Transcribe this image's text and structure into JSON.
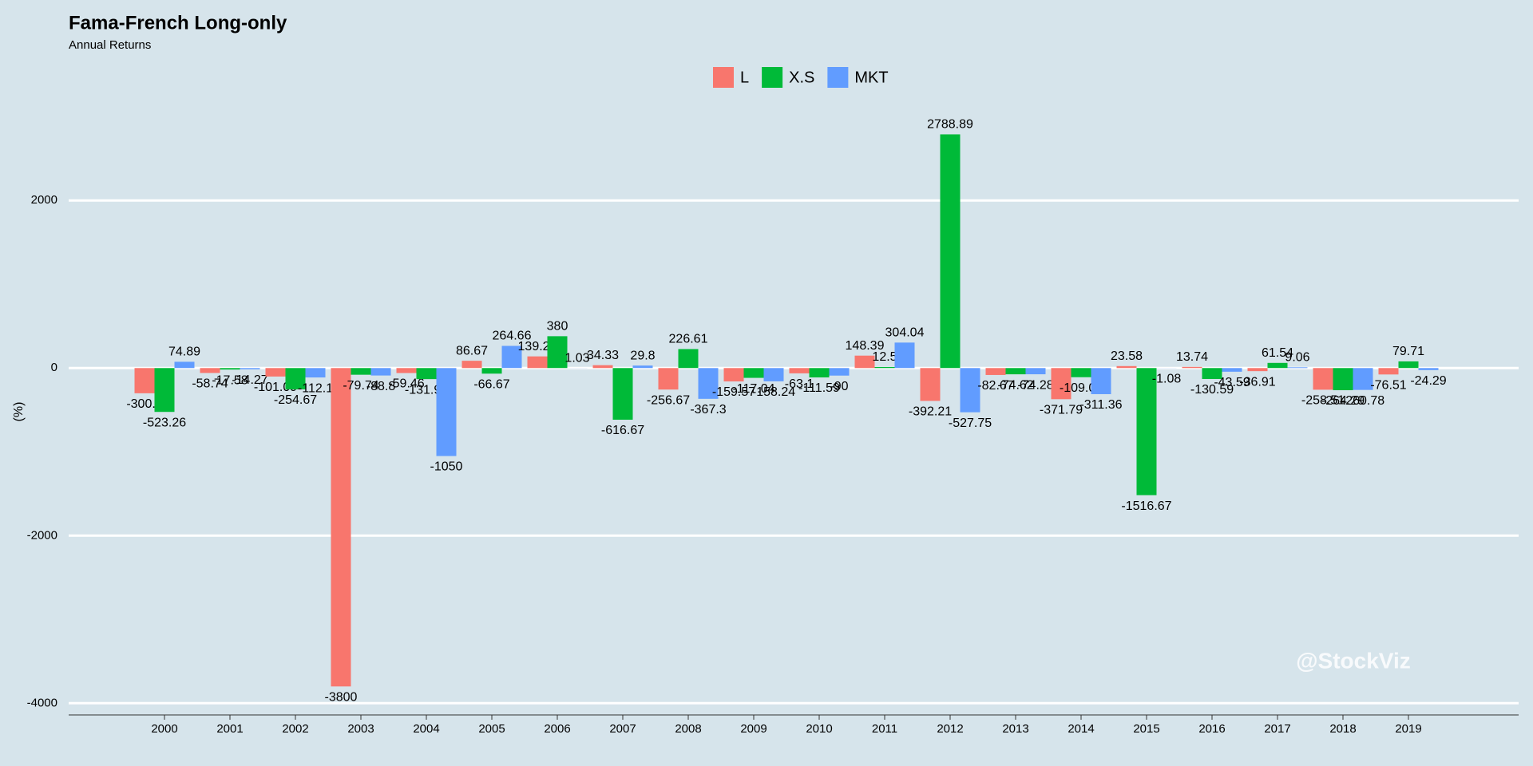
{
  "chart_data": {
    "type": "bar",
    "title": "Fama-French Long-only",
    "subtitle": "Annual Returns",
    "y_label": "(%)",
    "watermark": "@StockViz",
    "categories": [
      "2000",
      "2001",
      "2002",
      "2003",
      "2004",
      "2005",
      "2006",
      "2007",
      "2008",
      "2009",
      "2010",
      "2011",
      "2012",
      "2013",
      "2014",
      "2015",
      "2016",
      "2017",
      "2018",
      "2019"
    ],
    "series": [
      {
        "name": "L",
        "color": "#F8766D",
        "values": [
          -300.9,
          -58.74,
          -101.09,
          -3800,
          -59.46,
          86.67,
          139.29,
          34.33,
          -256.67,
          -159.57,
          -63.1,
          148.39,
          -392.21,
          -82.67,
          -371.79,
          23.58,
          13.74,
          -36.91,
          -258.51,
          -76.51
        ]
      },
      {
        "name": "X.S",
        "color": "#00BA38",
        "values": [
          -523.26,
          -17.58,
          -254.67,
          -79.74,
          -131.91,
          -66.67,
          380,
          -616.67,
          226.61,
          -117.04,
          -111.59,
          12.5,
          2788.89,
          -74.62,
          -109.09,
          -1516.67,
          -130.59,
          61.54,
          -264.29,
          79.71
        ]
      },
      {
        "name": "MKT",
        "color": "#619CFF",
        "values": [
          74.89,
          -14.27,
          -112.1,
          -88.8,
          -1050,
          264.66,
          1.03,
          29.8,
          -367.3,
          -158.24,
          -90,
          304.04,
          -527.75,
          -74.28,
          -311.36,
          -1.08,
          -43.59,
          9.06,
          -260.78,
          -24.29
        ]
      }
    ],
    "ylim": [
      -4140,
      3250
    ],
    "yticks": [
      -4000,
      -2000,
      0,
      2000
    ],
    "grid": true,
    "legend": "top"
  }
}
